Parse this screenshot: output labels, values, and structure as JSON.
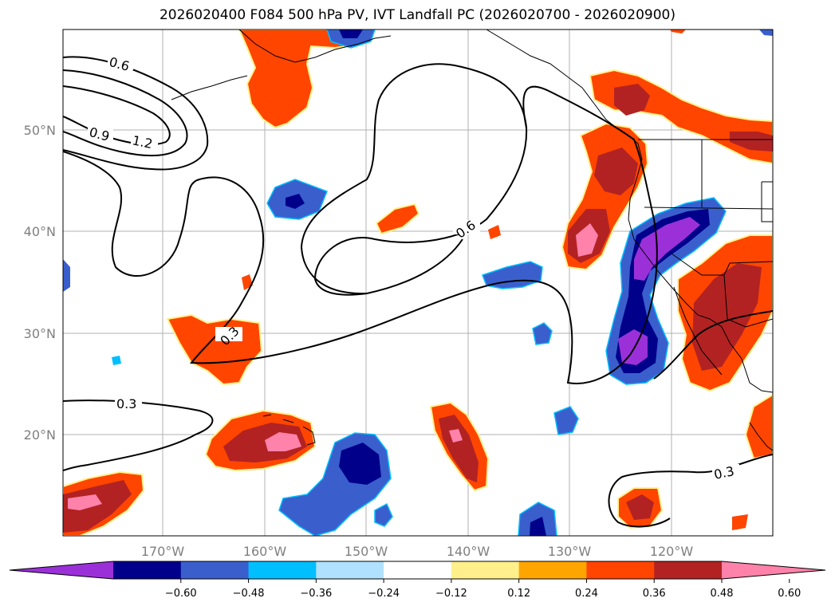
{
  "title": "2026020400 F084 500 hPa PV, IVT Landfall PC (2026020700 - 2026020900)",
  "map": {
    "lat_labels": [
      "50°N",
      "40°N",
      "30°N",
      "20°N"
    ],
    "lon_labels": [
      "170°W",
      "160°W",
      "150°W",
      "140°W",
      "130°W",
      "120°W"
    ],
    "contour_labels": [
      "0.6",
      "0.9",
      "1.2",
      "0.6",
      "0.3",
      "0.3",
      "0.3"
    ]
  },
  "colorbar": {
    "colors": [
      "#9b30d9",
      "#00008b",
      "#3a5fcd",
      "#00bfff",
      "#b0e2ff",
      "#ffffff",
      "#fff08c",
      "#ffa500",
      "#ff4500",
      "#b22222",
      "#ff82ab"
    ],
    "ticks": [
      "−0.60",
      "−0.48",
      "−0.36",
      "−0.24",
      "−0.12",
      "0.12",
      "0.24",
      "0.36",
      "0.48",
      "0.60"
    ]
  }
}
